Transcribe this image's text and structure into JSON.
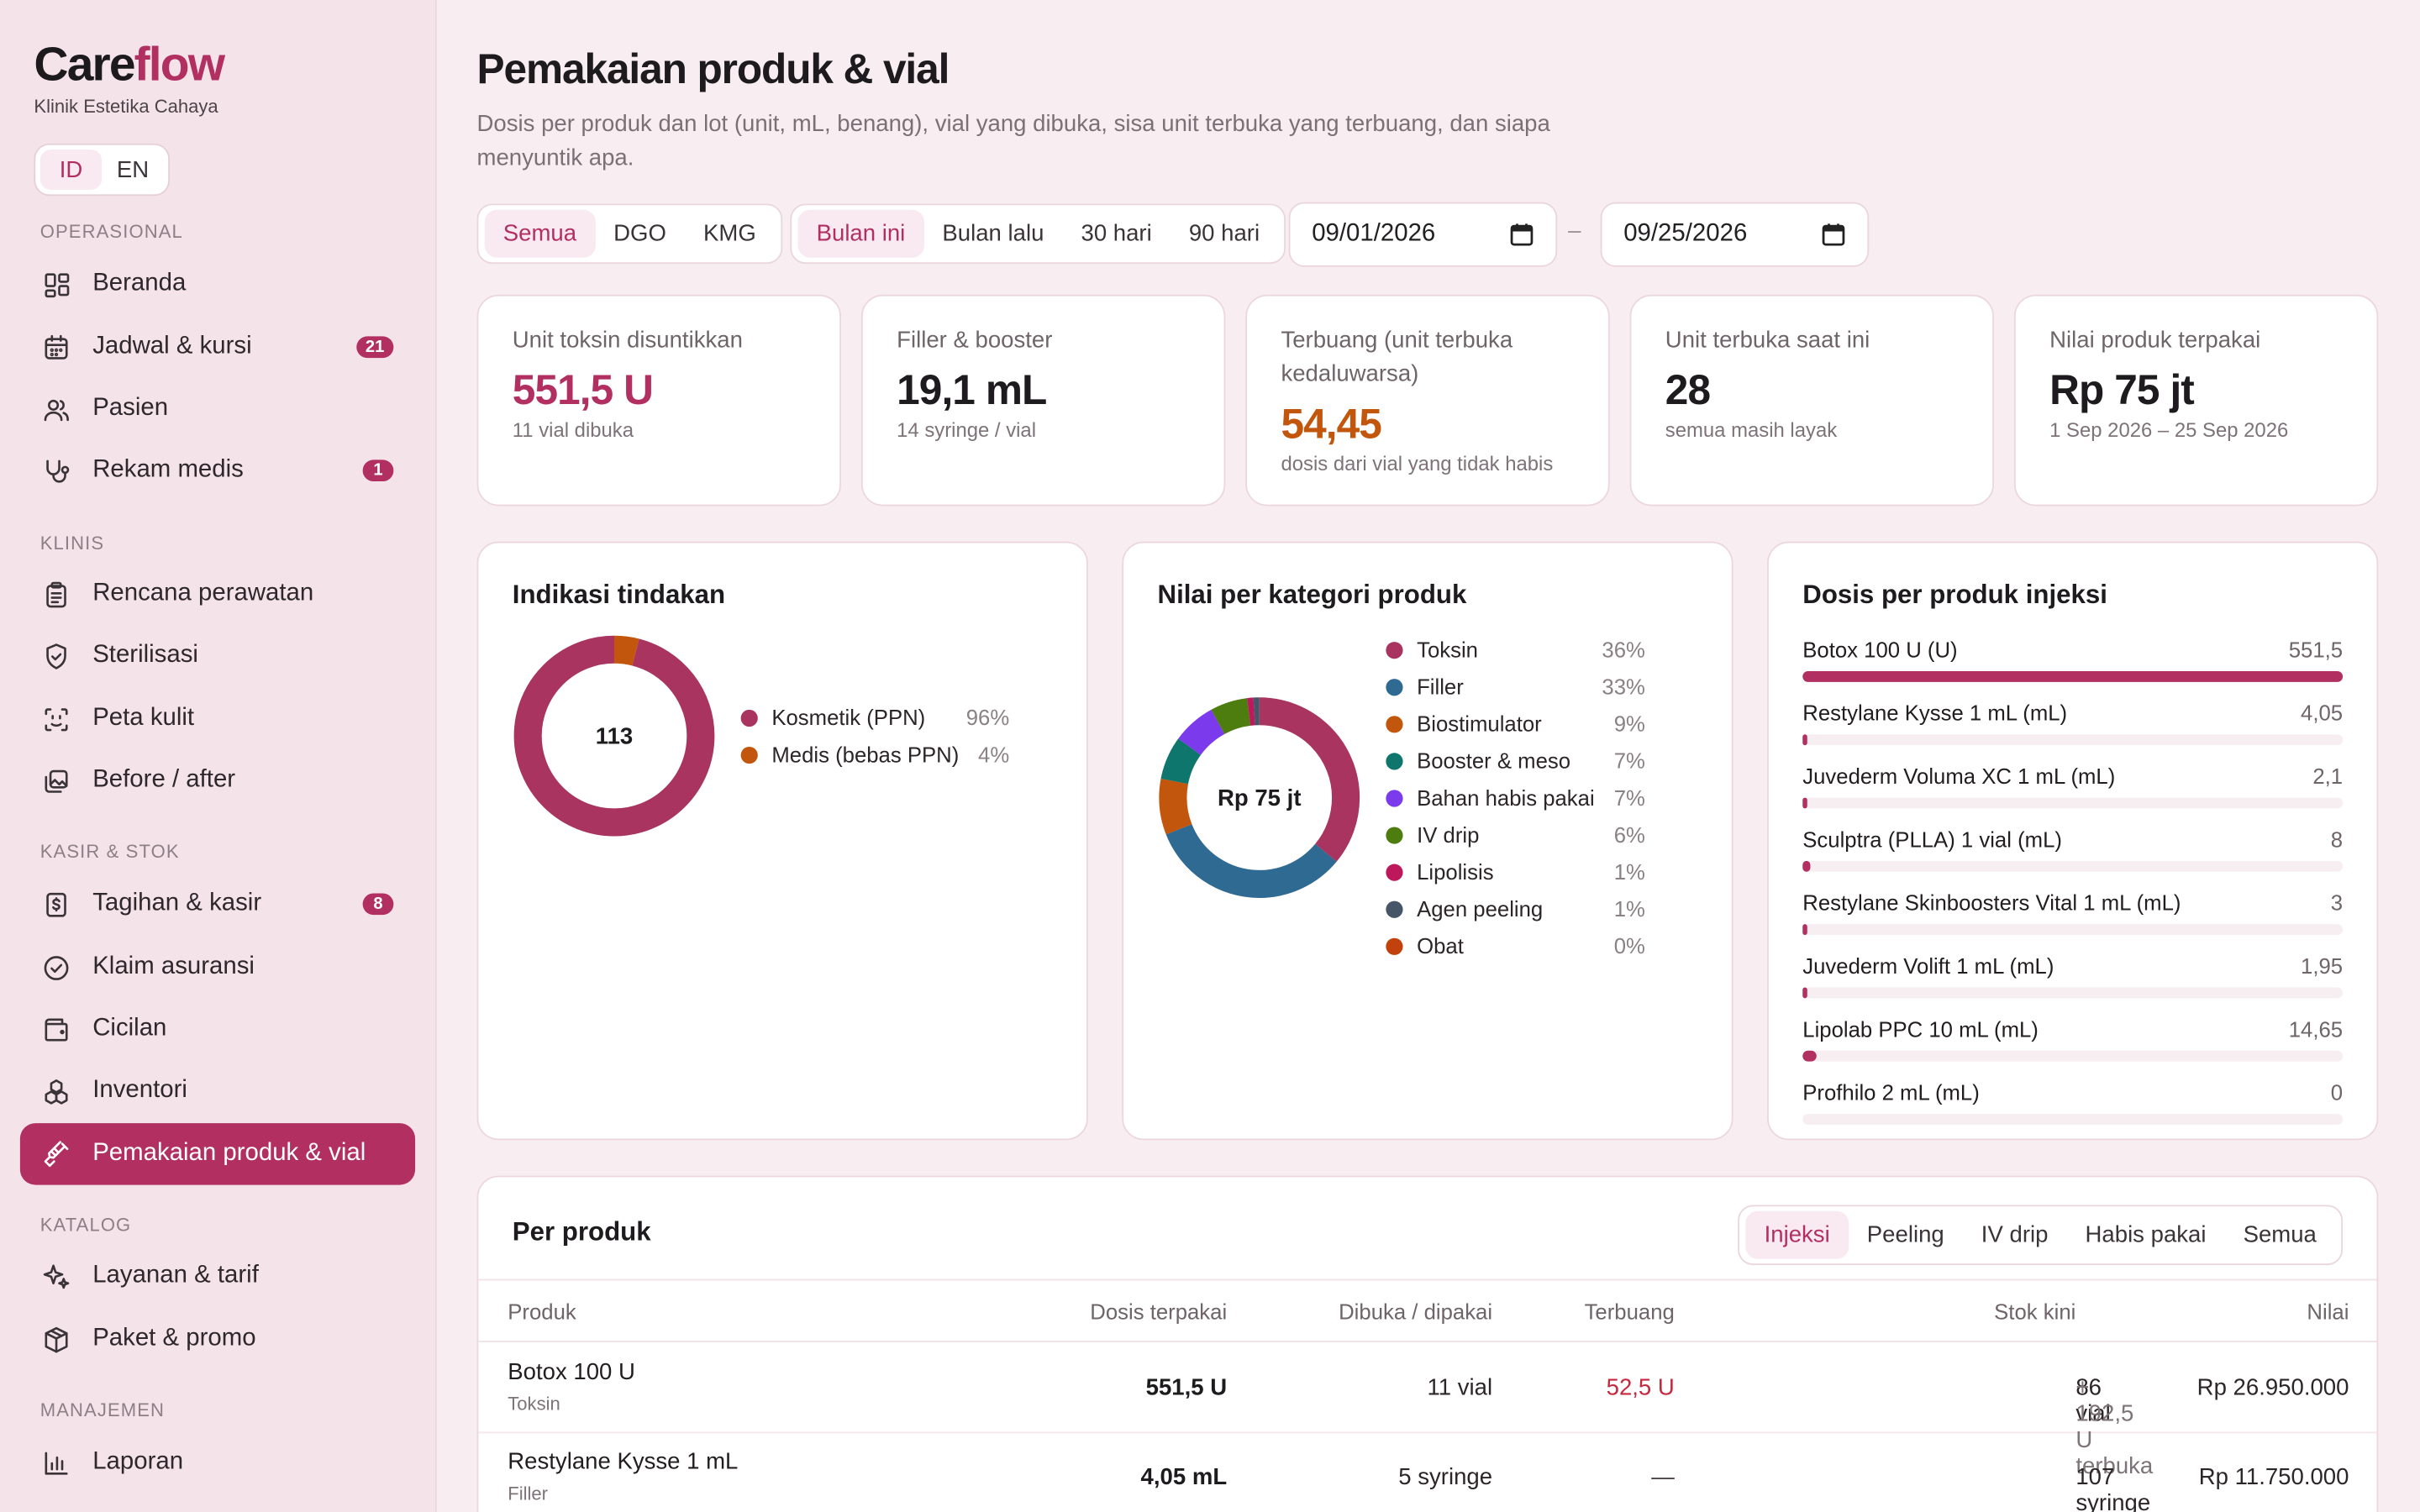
{
  "app": {
    "logo_main": "Care",
    "logo_accent": "flow",
    "clinic": "Klinik Estetika Cahaya"
  },
  "lang": {
    "id": "ID",
    "en": "EN"
  },
  "sidebar": {
    "sections": [
      "OPERASIONAL",
      "KLINIS",
      "KASIR & STOK",
      "KATALOG",
      "MANAJEMEN"
    ],
    "items": [
      {
        "label": "Beranda",
        "icon": "grid-icon"
      },
      {
        "label": "Jadwal & kursi",
        "icon": "calendar-icon",
        "badge": "21"
      },
      {
        "label": "Pasien",
        "icon": "users-icon"
      },
      {
        "label": "Rekam medis",
        "icon": "stethoscope-icon",
        "badge": "1"
      },
      {
        "label": "Rencana perawatan",
        "icon": "clipboard-icon"
      },
      {
        "label": "Sterilisasi",
        "icon": "shield-icon"
      },
      {
        "label": "Peta kulit",
        "icon": "face-scan-icon"
      },
      {
        "label": "Before / after",
        "icon": "photos-icon"
      },
      {
        "label": "Tagihan & kasir",
        "icon": "receipt-icon",
        "badge": "8"
      },
      {
        "label": "Klaim asuransi",
        "icon": "check-badge-icon"
      },
      {
        "label": "Cicilan",
        "icon": "wallet-icon"
      },
      {
        "label": "Inventori",
        "icon": "boxes-icon"
      },
      {
        "label": "Pemakaian produk & vial",
        "icon": "syringe-icon"
      },
      {
        "label": "Layanan & tarif",
        "icon": "sparkle-icon"
      },
      {
        "label": "Paket & promo",
        "icon": "package-icon"
      },
      {
        "label": "Laporan",
        "icon": "chart-icon"
      }
    ]
  },
  "header": {
    "title": "Pemakaian produk & vial",
    "subtitle": "Dosis per produk dan lot (unit, mL, benang), vial yang dibuka, sisa unit terbuka yang terbuang, dan siapa menyuntik apa."
  },
  "filters": {
    "scope": [
      "Semua",
      "DGO",
      "KMG"
    ],
    "period": [
      "Bulan ini",
      "Bulan lalu",
      "30 hari",
      "90 hari"
    ],
    "date_from": "09/01/2026",
    "date_to": "09/25/2026",
    "dash": "–"
  },
  "kpis": [
    {
      "label": "Unit toksin disuntikkan",
      "value": "551,5 U",
      "hint": "11 vial dibuka",
      "color": "#b22f61"
    },
    {
      "label": "Filler & booster",
      "value": "19,1 mL",
      "hint": "14 syringe / vial",
      "color": "#1d1b1e"
    },
    {
      "label": "Terbuang (unit terbuka kedaluwarsa)",
      "value": "54,45",
      "hint": "dosis dari vial yang tidak habis",
      "color": "#c2560c"
    },
    {
      "label": "Unit terbuka saat ini",
      "value": "28",
      "hint": "semua masih layak",
      "color": "#1d1b1e"
    },
    {
      "label": "Nilai produk terpakai",
      "value": "Rp 75 jt",
      "hint": "1 Sep 2026 – 25 Sep 2026",
      "color": "#1d1b1e"
    }
  ],
  "indication": {
    "title": "Indikasi tindakan",
    "center": "113",
    "legend": [
      {
        "label": "Kosmetik (PPN)",
        "pct": "96%",
        "color": "#a8345f"
      },
      {
        "label": "Medis (bebas PPN)",
        "pct": "4%",
        "color": "#c2560c"
      }
    ]
  },
  "category": {
    "title": "Nilai per kategori produk",
    "center": "Rp 75 jt",
    "legend": [
      {
        "label": "Toksin",
        "pct": "36%",
        "color": "#a8345f"
      },
      {
        "label": "Filler",
        "pct": "33%",
        "color": "#2f6a93"
      },
      {
        "label": "Biostimulator",
        "pct": "9%",
        "color": "#c2560c"
      },
      {
        "label": "Booster & meso",
        "pct": "7%",
        "color": "#0f766e"
      },
      {
        "label": "Bahan habis pakai",
        "pct": "7%",
        "color": "#7c3aed"
      },
      {
        "label": "IV drip",
        "pct": "6%",
        "color": "#4d7c0f"
      },
      {
        "label": "Lipolisis",
        "pct": "1%",
        "color": "#be185d"
      },
      {
        "label": "Agen peeling",
        "pct": "1%",
        "color": "#475569"
      },
      {
        "label": "Obat",
        "pct": "0%",
        "color": "#c2410c"
      }
    ]
  },
  "dose": {
    "title": "Dosis per produk injeksi",
    "rows": [
      {
        "name": "Botox 100 U (U)",
        "value": "551,5",
        "fraction": 1.0
      },
      {
        "name": "Restylane Kysse 1 mL (mL)",
        "value": "4,05",
        "fraction": 0.007
      },
      {
        "name": "Juvederm Voluma XC 1 mL (mL)",
        "value": "2,1",
        "fraction": 0.004
      },
      {
        "name": "Sculptra (PLLA) 1 vial (mL)",
        "value": "8",
        "fraction": 0.015
      },
      {
        "name": "Restylane Skinboosters Vital 1 mL (mL)",
        "value": "3",
        "fraction": 0.005
      },
      {
        "name": "Juvederm Volift 1 mL (mL)",
        "value": "1,95",
        "fraction": 0.004
      },
      {
        "name": "Lipolab PPC 10 mL (mL)",
        "value": "14,65",
        "fraction": 0.027
      },
      {
        "name": "Profhilo 2 mL (mL)",
        "value": "0",
        "fraction": 0
      }
    ]
  },
  "table": {
    "title": "Per produk",
    "tabs": [
      "Injeksi",
      "Peeling",
      "IV drip",
      "Habis pakai",
      "Semua"
    ],
    "headers": {
      "product": "Produk",
      "dose": "Dosis terpakai",
      "opened": "Dibuka / dipakai",
      "waste": "Terbuang",
      "stock": "Stok kini",
      "value": "Nilai"
    },
    "rows": [
      {
        "name": "Botox 100 U",
        "cat": "Toksin",
        "dose": "551,5 U",
        "opened": "11 vial",
        "waste": "52,5 U",
        "stock": "86 vial",
        "stock_extra": " + 192,5 U terbuka",
        "value": "Rp 26.950.000"
      },
      {
        "name": "Restylane Kysse 1 mL",
        "cat": "Filler",
        "dose": "4,05 mL",
        "opened": "5 syringe",
        "waste": "—",
        "stock": "107 syringe",
        "stock_extra": "",
        "value": "Rp 11.750.000"
      }
    ]
  }
}
